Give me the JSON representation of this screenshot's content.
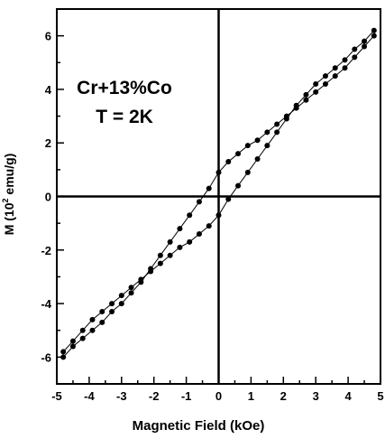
{
  "chart_data": {
    "type": "scatter",
    "title": "",
    "xlabel": "Magnetic Field (kOe)",
    "ylabel_prefix": "M (10",
    "ylabel_exponent": "2",
    "ylabel_suffix": " emu/g)",
    "annotation_line1": "Cr+13%Co",
    "annotation_line2": "T = 2K",
    "xlim": [
      -5,
      5
    ],
    "ylim": [
      -7,
      7
    ],
    "x_ticks": [
      -5,
      -4,
      -3,
      -2,
      -1,
      0,
      1,
      2,
      3,
      4,
      5
    ],
    "y_ticks": [
      -6,
      -4,
      -2,
      0,
      2,
      4,
      6
    ],
    "grid": false,
    "series": [
      {
        "x": [
          -4.8,
          -4.5,
          -4.2,
          -3.9,
          -3.6,
          -3.3,
          -3.0,
          -2.7,
          -2.4,
          -2.1,
          -1.8,
          -1.5,
          -1.2,
          -0.9,
          -0.6,
          -0.3,
          0.0,
          0.3,
          0.6,
          0.9,
          1.2,
          1.5,
          1.8,
          2.1,
          2.4,
          2.7,
          3.0,
          3.3,
          3.6,
          3.9,
          4.2,
          4.5,
          4.8
        ],
        "y": [
          -6.0,
          -5.6,
          -5.3,
          -5.0,
          -4.7,
          -4.3,
          -4.0,
          -3.6,
          -3.2,
          -2.7,
          -2.2,
          -1.7,
          -1.2,
          -0.7,
          -0.2,
          0.3,
          0.9,
          1.3,
          1.6,
          1.9,
          2.1,
          2.4,
          2.7,
          3.0,
          3.3,
          3.6,
          3.9,
          4.2,
          4.5,
          4.8,
          5.2,
          5.6,
          6.0
        ]
      },
      {
        "x": [
          4.8,
          4.5,
          4.2,
          3.9,
          3.6,
          3.3,
          3.0,
          2.7,
          2.4,
          2.1,
          1.8,
          1.5,
          1.2,
          0.9,
          0.6,
          0.3,
          0.0,
          -0.3,
          -0.6,
          -0.9,
          -1.2,
          -1.5,
          -1.8,
          -2.1,
          -2.4,
          -2.7,
          -3.0,
          -3.3,
          -3.6,
          -3.9,
          -4.2,
          -4.5,
          -4.8
        ],
        "y": [
          6.2,
          5.8,
          5.5,
          5.1,
          4.8,
          4.5,
          4.2,
          3.8,
          3.4,
          2.9,
          2.4,
          1.9,
          1.4,
          0.9,
          0.4,
          -0.1,
          -0.7,
          -1.1,
          -1.4,
          -1.7,
          -1.9,
          -2.2,
          -2.5,
          -2.8,
          -3.1,
          -3.4,
          -3.7,
          -4.0,
          -4.3,
          -4.6,
          -5.0,
          -5.4,
          -5.8
        ]
      }
    ]
  }
}
